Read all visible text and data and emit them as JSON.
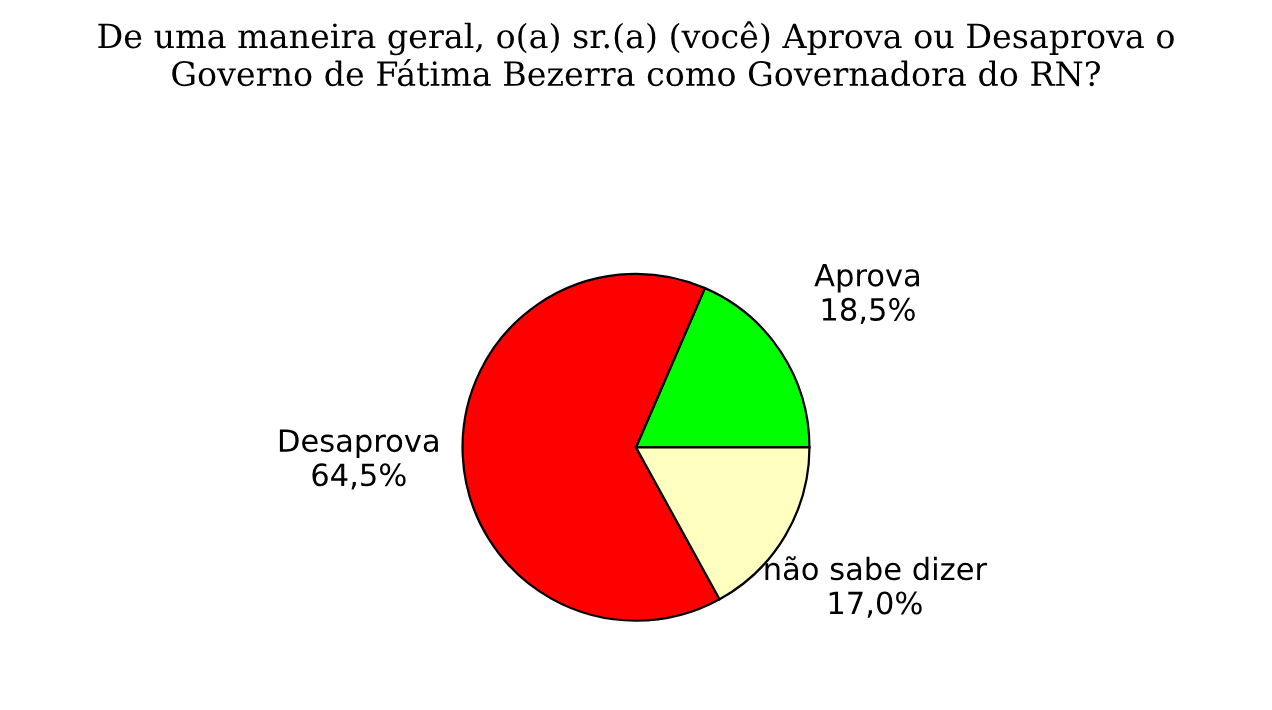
{
  "chart_data": {
    "type": "pie",
    "title": "De uma maneira geral, o(a) sr.(a) (você) Aprova ou Desaprova o\nGoverno de Fátima Bezerra como Governadora do RN?",
    "categories": [
      "Aprova",
      "Desaprova",
      "não sabe dizer"
    ],
    "values": [
      18.5,
      64.5,
      17.0
    ],
    "value_labels": [
      "18,5%",
      "64,5%",
      "17,0%"
    ],
    "colors": [
      "#00ff00",
      "#ff0000",
      "#ffffc0"
    ],
    "legend": false
  }
}
